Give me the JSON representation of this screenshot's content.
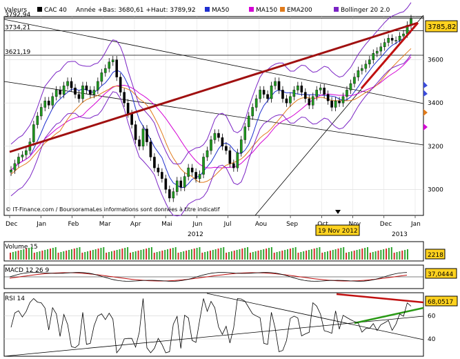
{
  "header": {
    "valeurs": "Valeurs",
    "ticker": "CAC 40",
    "stats": "Année +Bas: 3680,61 +Haut: 3789,92",
    "legend": [
      {
        "label": "MA50",
        "color": "#1f2fcf"
      },
      {
        "label": "MA150",
        "color": "#d400d4"
      },
      {
        "label": "EMA200",
        "color": "#e07a1a"
      },
      {
        "label": "Bollinger 20 2.0",
        "color": "#7a22c4"
      }
    ]
  },
  "chart_data": [
    {
      "type": "candlestick",
      "x_ticks": [
        "Dec",
        "Jan",
        "Feb",
        "Mar",
        "Apr",
        "Mai",
        "Jun",
        "Jul",
        "Aou",
        "Sep",
        "Oct",
        "Nov",
        "Dec",
        "Jan"
      ],
      "year_labels": [
        "2012",
        "2013"
      ],
      "yticks": [
        3000,
        3200,
        3400,
        3600
      ],
      "ylim": [
        2880,
        3800
      ],
      "hlines": [
        "3792,94",
        "3734,21",
        "3621,19"
      ],
      "hline_values": [
        3792.94,
        3734.21,
        3621.19
      ],
      "last_value": "3785,82",
      "marker_label": "19 Nov 2012",
      "source": "© IT-Finance.com / BoursoramaLes informations sont données à titre indicatif",
      "close": [
        3090,
        3120,
        3150,
        3160,
        3180,
        3220,
        3300,
        3340,
        3380,
        3410,
        3390,
        3430,
        3460,
        3440,
        3480,
        3500,
        3470,
        3440,
        3420,
        3480,
        3460,
        3440,
        3460,
        3500,
        3540,
        3560,
        3590,
        3600,
        3520,
        3450,
        3400,
        3350,
        3300,
        3230,
        3200,
        3280,
        3220,
        3150,
        3100,
        3080,
        3050,
        3000,
        2960,
        2990,
        3040,
        3010,
        3060,
        3100,
        3080,
        3050,
        3070,
        3150,
        3180,
        3230,
        3260,
        3240,
        3200,
        3180,
        3120,
        3100,
        3170,
        3230,
        3290,
        3340,
        3380,
        3420,
        3460,
        3440,
        3420,
        3480,
        3500,
        3460,
        3420,
        3400,
        3430,
        3460,
        3480,
        3450,
        3420,
        3390,
        3430,
        3460,
        3470,
        3440,
        3410,
        3380,
        3410,
        3400,
        3430,
        3460,
        3490,
        3520,
        3550,
        3560,
        3580,
        3600,
        3630,
        3640,
        3660,
        3680,
        3700,
        3690,
        3690,
        3710,
        3720,
        3760,
        3790
      ],
      "panels": [
        {
          "name": "Volume 15",
          "last_value": "2218"
        },
        {
          "name": "MACD 12 26 9",
          "last_value": "37,0444"
        },
        {
          "name": "RSI 14",
          "last_value": "68,0517",
          "yticks": [
            40,
            60
          ],
          "ylim": [
            25,
            80
          ]
        }
      ]
    }
  ]
}
